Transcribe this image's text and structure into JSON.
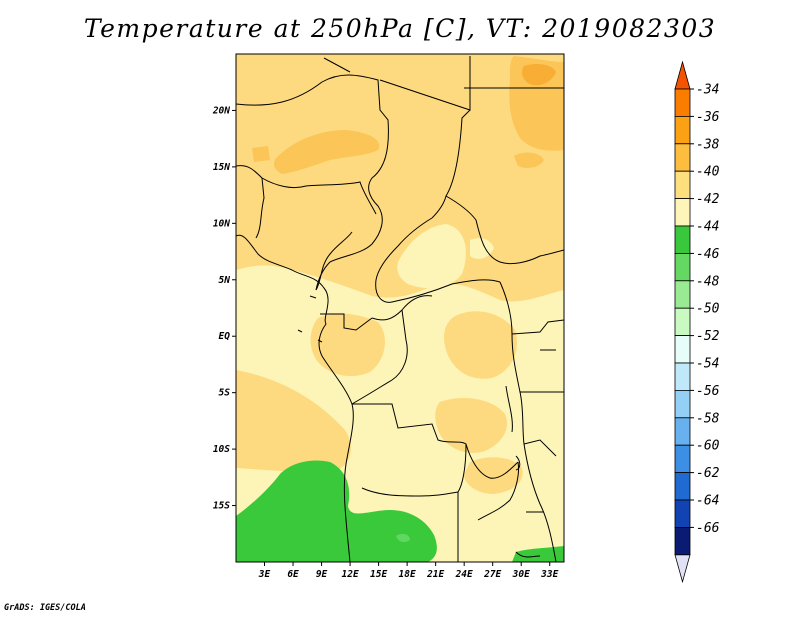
{
  "title": "Temperature at 250hPa [C], VT: 2019082303",
  "credit": "GrADS: IGES/COLA",
  "map": {
    "lon_range": [
      0,
      34.5
    ],
    "lat_range": [
      -20,
      25
    ],
    "lat_ticks": [
      {
        "label": "20N",
        "lat": 20
      },
      {
        "label": "15N",
        "lat": 15
      },
      {
        "label": "10N",
        "lat": 10
      },
      {
        "label": "5N",
        "lat": 5
      },
      {
        "label": "EQ",
        "lat": 0
      },
      {
        "label": "5S",
        "lat": -5
      },
      {
        "label": "10S",
        "lat": -10
      },
      {
        "label": "15S",
        "lat": -15
      }
    ],
    "lon_ticks": [
      {
        "label": "3E",
        "lon": 3
      },
      {
        "label": "6E",
        "lon": 6
      },
      {
        "label": "9E",
        "lon": 9
      },
      {
        "label": "12E",
        "lon": 12
      },
      {
        "label": "15E",
        "lon": 15
      },
      {
        "label": "18E",
        "lon": 18
      },
      {
        "label": "21E",
        "lon": 21
      },
      {
        "label": "24E",
        "lon": 24
      },
      {
        "label": "27E",
        "lon": 27
      },
      {
        "label": "30E",
        "lon": 30
      },
      {
        "label": "33E",
        "lon": 33
      }
    ]
  },
  "colorbar": {
    "labels": [
      "-34",
      "-36",
      "-38",
      "-40",
      "-42",
      "-44",
      "-46",
      "-48",
      "-50",
      "-52",
      "-54",
      "-56",
      "-58",
      "-60",
      "-62",
      "-64",
      "-66"
    ],
    "colors": [
      "#f45400",
      "#fb7d00",
      "#fca114",
      "#fdbd3f",
      "#fddf7e",
      "#fdf6b8",
      "#39c83b",
      "#64d863",
      "#9aea94",
      "#c8fac2",
      "#e6fdf9",
      "#c0e8fb",
      "#94cff5",
      "#68b1ef",
      "#3d8ee5",
      "#1f6bd2",
      "#1243b3",
      "#0a1b74",
      "#e2e2f7"
    ]
  },
  "field_colors": {
    "t40": "#fdda80",
    "t38": "#fbc557",
    "t36": "#f8ad35",
    "t42": "#fdf5b7",
    "t44": "#3ac93b",
    "t46": "#60d760"
  }
}
